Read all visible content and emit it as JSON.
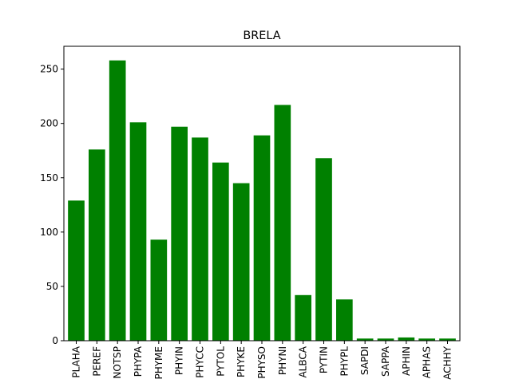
{
  "chart_data": {
    "type": "bar",
    "title": "BRELA",
    "xlabel": "",
    "ylabel": "",
    "categories": [
      "PLAHA",
      "PEREF",
      "NOTSP",
      "PHYPA",
      "PHYME",
      "PHYIN",
      "PHYCC",
      "PYTOL",
      "PHYKE",
      "PHYSO",
      "PHYNI",
      "ALBCA",
      "PYTIN",
      "PHYPL",
      "SAPDI",
      "SAPPA",
      "APHIN",
      "APHAS",
      "ACHHY"
    ],
    "values": [
      129,
      176,
      258,
      201,
      93,
      197,
      187,
      164,
      145,
      189,
      217,
      42,
      168,
      38,
      2,
      2,
      3,
      2,
      2
    ],
    "ylim": [
      0,
      271
    ],
    "yticks": [
      0,
      50,
      100,
      150,
      200,
      250
    ],
    "bar_color": "#008000",
    "grid": false,
    "legend": "none"
  }
}
